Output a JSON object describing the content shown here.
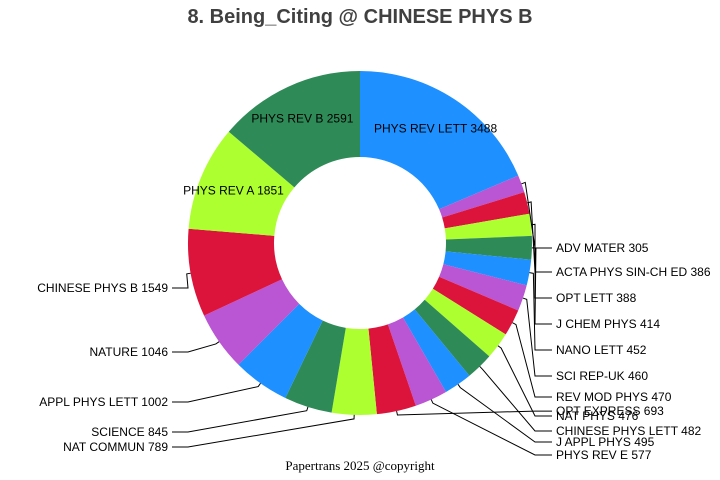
{
  "chart_data": {
    "type": "pie",
    "variant": "donut",
    "title": "8. Being_Citing @ CHINESE PHYS B",
    "start_angle_deg": 0,
    "direction": "clockwise",
    "inner_radius_ratio": 0.5,
    "slices": [
      {
        "label": "PHYS REV LETT",
        "value": 3488,
        "color": "#1E90FF",
        "label_position": "inside"
      },
      {
        "label": "ADV MATER",
        "value": 305,
        "color": "#BA55D3",
        "label_position": "outside"
      },
      {
        "label": "ACTA PHYS SIN-CH ED",
        "value": 386,
        "color": "#DC143C",
        "label_position": "outside"
      },
      {
        "label": "OPT LETT",
        "value": 388,
        "color": "#ADFF2F",
        "label_position": "outside"
      },
      {
        "label": "J CHEM PHYS",
        "value": 414,
        "color": "#2E8B57",
        "label_position": "outside"
      },
      {
        "label": "NANO LETT",
        "value": 452,
        "color": "#1E90FF",
        "label_position": "outside"
      },
      {
        "label": "SCI REP-UK",
        "value": 460,
        "color": "#BA55D3",
        "label_position": "outside"
      },
      {
        "label": "REV MOD PHYS",
        "value": 470,
        "color": "#DC143C",
        "label_position": "outside"
      },
      {
        "label": "NAT PHYS",
        "value": 476,
        "color": "#ADFF2F",
        "label_position": "outside"
      },
      {
        "label": "CHINESE PHYS LETT",
        "value": 482,
        "color": "#2E8B57",
        "label_position": "outside"
      },
      {
        "label": "J APPL PHYS",
        "value": 495,
        "color": "#1E90FF",
        "label_position": "outside"
      },
      {
        "label": "PHYS REV E",
        "value": 577,
        "color": "#BA55D3",
        "label_position": "outside"
      },
      {
        "label": "OPT EXPRESS",
        "value": 693,
        "color": "#DC143C",
        "label_position": "outside"
      },
      {
        "label": "NAT COMMUN",
        "value": 789,
        "color": "#ADFF2F",
        "label_position": "outside"
      },
      {
        "label": "SCIENCE",
        "value": 845,
        "color": "#2E8B57",
        "label_position": "outside"
      },
      {
        "label": "APPL PHYS LETT",
        "value": 1002,
        "color": "#1E90FF",
        "label_position": "outside"
      },
      {
        "label": "NATURE",
        "value": 1046,
        "color": "#BA55D3",
        "label_position": "outside"
      },
      {
        "label": "CHINESE PHYS B",
        "value": 1549,
        "color": "#DC143C",
        "label_position": "outside"
      },
      {
        "label": "PHYS REV A",
        "value": 1851,
        "color": "#ADFF2F",
        "label_position": "inside"
      },
      {
        "label": "PHYS REV B",
        "value": 2591,
        "color": "#2E8B57",
        "label_position": "inside"
      }
    ],
    "legend": "none"
  },
  "footer": "Papertrans 2025 @copyright"
}
